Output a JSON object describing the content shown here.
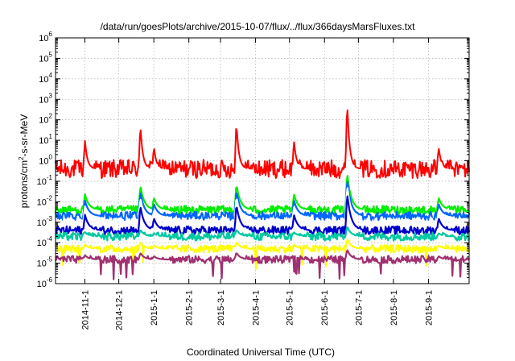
{
  "chart_data": {
    "type": "line",
    "title": "/data/run/goesPlots/archive/2015-10-07/flux/../flux/366daysMarsFluxes.txt",
    "xlabel": "Coordinated Universal Time (UTC)",
    "ylabel": {
      "pre": "protons/cm",
      "sup": "2",
      "post": "-s-sr-MeV"
    },
    "yscale": "log",
    "ylim": [
      1e-06,
      1000000.0
    ],
    "y_ticks": [
      {
        "base": "10",
        "exp": "-6"
      },
      {
        "base": "10",
        "exp": "-5"
      },
      {
        "base": "10",
        "exp": "-4"
      },
      {
        "base": "10",
        "exp": "-3"
      },
      {
        "base": "10",
        "exp": "-2"
      },
      {
        "base": "10",
        "exp": "-1"
      },
      {
        "base": "10",
        "exp": "0"
      },
      {
        "base": "10",
        "exp": "1"
      },
      {
        "base": "10",
        "exp": "2"
      },
      {
        "base": "10",
        "exp": "3"
      },
      {
        "base": "10",
        "exp": "4"
      },
      {
        "base": "10",
        "exp": "5"
      },
      {
        "base": "10",
        "exp": "6"
      }
    ],
    "xlim": [
      "2014-10-06",
      "2015-10-07"
    ],
    "x_ticks": [
      "2014-11-1",
      "2014-12-1",
      "2015-1-1",
      "2015-2-1",
      "2015-3-1",
      "2015-4-1",
      "2015-5-1",
      "2015-6-1",
      "2015-7-1",
      "2015-8-1",
      "2015-9-1"
    ],
    "x_tick_dates": [
      "2014-11-01",
      "2014-12-01",
      "2015-01-01",
      "2015-02-01",
      "2015-03-01",
      "2015-04-01",
      "2015-05-01",
      "2015-06-01",
      "2015-07-01",
      "2015-08-01",
      "2015-09-01"
    ],
    "grid": true,
    "legend": "none",
    "series_approx_levels": [
      {
        "color": "#ff0000",
        "baseline": 0.4
      },
      {
        "color": "#00ee00",
        "baseline": 0.004
      },
      {
        "color": "#0066ff",
        "baseline": 0.002
      },
      {
        "color": "#ffffff",
        "baseline": 0.001
      },
      {
        "color": "#0000cc",
        "baseline": 0.0004
      },
      {
        "color": "#00c8a0",
        "baseline": 0.0002
      },
      {
        "color": "#ffff00",
        "baseline": 5e-05
      },
      {
        "color": "#a03070",
        "baseline": 1.5e-05
      }
    ],
    "events": [
      {
        "date": "2014-11-01",
        "peak_red": 10
      },
      {
        "date": "2014-12-20",
        "peak_red": 60
      },
      {
        "date": "2015-01-01",
        "peak_red": 5
      },
      {
        "date": "2015-03-15",
        "peak_red": 80
      },
      {
        "date": "2015-05-05",
        "peak_red": 10
      },
      {
        "date": "2015-06-21",
        "peak_red": 800
      },
      {
        "date": "2015-09-10",
        "peak_red": 5
      }
    ]
  }
}
